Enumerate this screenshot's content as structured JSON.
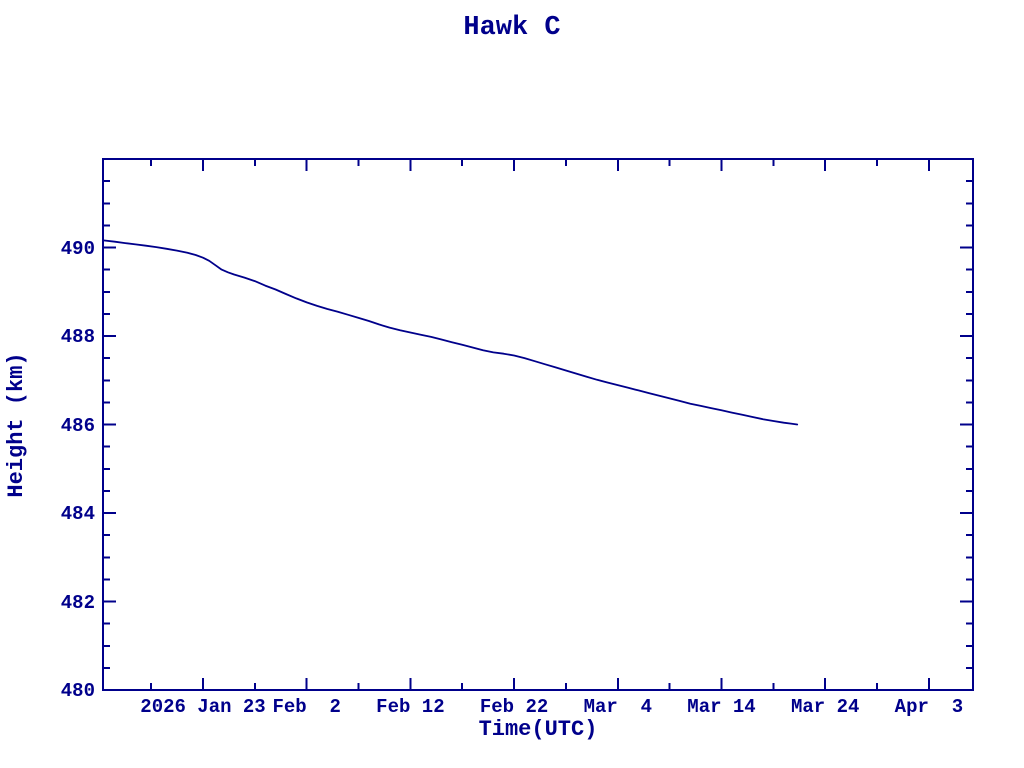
{
  "page": {
    "background_color": "#ffffff",
    "ink_color": "#00008B"
  },
  "chart_data": {
    "type": "line",
    "title": "Hawk C",
    "xlabel": "Time(UTC)",
    "ylabel": "Height (km)",
    "grid": false,
    "legend": "none",
    "x_axis": {
      "unit": "days relative to 2026 Jan 23 (UTC)",
      "range": [
        -9.64,
        74.25
      ],
      "major_ticks": [
        {
          "d": 0,
          "label": "2026 Jan 23"
        },
        {
          "d": 10,
          "label": "Feb  2"
        },
        {
          "d": 20,
          "label": "Feb 12"
        },
        {
          "d": 30,
          "label": "Feb 22"
        },
        {
          "d": 40,
          "label": "Mar  4"
        },
        {
          "d": 50,
          "label": "Mar 14"
        },
        {
          "d": 60,
          "label": "Mar 24"
        },
        {
          "d": 70,
          "label": "Apr  3"
        }
      ],
      "minor_ticks": [
        -5,
        5,
        15,
        25,
        35,
        45,
        55,
        65
      ]
    },
    "y_axis": {
      "unit": "km",
      "range": [
        480,
        492
      ],
      "major_ticks": [
        {
          "v": 480,
          "label": "480"
        },
        {
          "v": 482,
          "label": "482"
        },
        {
          "v": 484,
          "label": "484"
        },
        {
          "v": 486,
          "label": "486"
        },
        {
          "v": 488,
          "label": "488"
        },
        {
          "v": 490,
          "label": "490"
        }
      ],
      "minor_ticks": [
        480.5,
        481,
        481.5,
        482.5,
        483,
        483.5,
        484.5,
        485,
        485.5,
        486.5,
        487,
        487.5,
        488.5,
        489,
        489.5,
        490.5,
        491,
        491.5
      ]
    },
    "series": [
      {
        "name": "Hawk C height",
        "color": "#00008B",
        "points": [
          [
            -9.6,
            490.16
          ],
          [
            -8.5,
            490.13
          ],
          [
            -7.5,
            490.1
          ],
          [
            -6.5,
            490.07
          ],
          [
            -5.5,
            490.04
          ],
          [
            -4.5,
            490.01
          ],
          [
            -3.5,
            489.97
          ],
          [
            -2.5,
            489.93
          ],
          [
            -1.5,
            489.88
          ],
          [
            -0.7,
            489.83
          ],
          [
            0,
            489.77
          ],
          [
            0.6,
            489.7
          ],
          [
            1.2,
            489.6
          ],
          [
            1.8,
            489.5
          ],
          [
            2.4,
            489.44
          ],
          [
            3,
            489.39
          ],
          [
            4,
            489.32
          ],
          [
            5,
            489.24
          ],
          [
            6,
            489.14
          ],
          [
            7,
            489.05
          ],
          [
            8,
            488.95
          ],
          [
            9,
            488.85
          ],
          [
            10,
            488.76
          ],
          [
            11,
            488.68
          ],
          [
            12,
            488.61
          ],
          [
            13,
            488.55
          ],
          [
            14,
            488.48
          ],
          [
            15,
            488.41
          ],
          [
            16,
            488.34
          ],
          [
            17,
            488.26
          ],
          [
            18,
            488.19
          ],
          [
            19,
            488.13
          ],
          [
            20,
            488.08
          ],
          [
            21,
            488.03
          ],
          [
            22,
            487.98
          ],
          [
            23,
            487.92
          ],
          [
            24,
            487.86
          ],
          [
            25,
            487.8
          ],
          [
            26,
            487.74
          ],
          [
            27,
            487.68
          ],
          [
            28,
            487.63
          ],
          [
            29,
            487.6
          ],
          [
            30,
            487.56
          ],
          [
            31,
            487.5
          ],
          [
            32,
            487.43
          ],
          [
            33,
            487.36
          ],
          [
            34,
            487.29
          ],
          [
            35,
            487.22
          ],
          [
            36,
            487.15
          ],
          [
            37,
            487.08
          ],
          [
            38,
            487.01
          ],
          [
            39,
            486.95
          ],
          [
            40,
            486.89
          ],
          [
            41,
            486.83
          ],
          [
            42,
            486.77
          ],
          [
            43,
            486.71
          ],
          [
            44,
            486.65
          ],
          [
            45,
            486.59
          ],
          [
            46,
            486.53
          ],
          [
            47,
            486.47
          ],
          [
            48,
            486.42
          ],
          [
            49,
            486.37
          ],
          [
            50,
            486.32
          ],
          [
            51,
            486.27
          ],
          [
            52,
            486.22
          ],
          [
            53,
            486.17
          ],
          [
            54,
            486.12
          ],
          [
            55,
            486.08
          ],
          [
            56,
            486.04
          ],
          [
            56.7,
            486.02
          ],
          [
            57.3,
            486.0
          ]
        ]
      }
    ]
  }
}
